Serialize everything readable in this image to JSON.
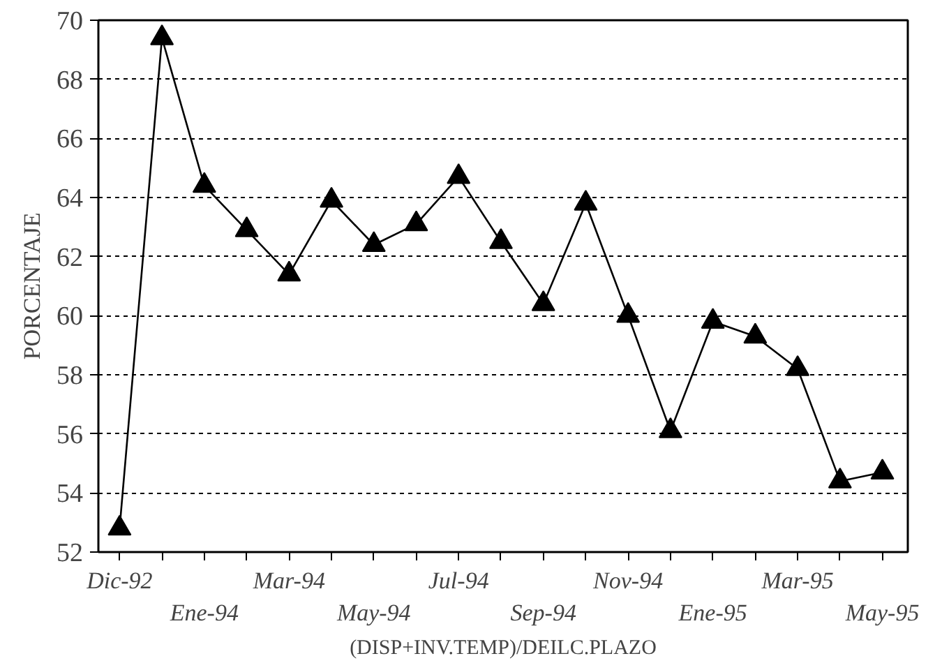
{
  "chart_data": {
    "type": "line",
    "xlabel": "(DISP+INV.TEMP)/DEILC.PLAZO",
    "ylabel": "PORCENTAJE",
    "categories": [
      "Dic-92",
      null,
      "Ene-94",
      null,
      "Mar-94",
      null,
      "May-94",
      null,
      "Jul-94",
      null,
      "Sep-94",
      null,
      "Nov-94",
      null,
      "Ene-95",
      null,
      "Mar-95",
      null,
      "May-95"
    ],
    "series": [
      {
        "color": "#000000",
        "values": [
          52.8,
          69.4,
          64.4,
          62.9,
          61.4,
          63.9,
          62.4,
          63.1,
          64.7,
          62.5,
          60.4,
          63.8,
          60.0,
          56.1,
          59.8,
          59.3,
          58.2,
          54.4,
          54.7
        ]
      }
    ],
    "ylim": [
      52,
      70
    ],
    "yticks": [
      52,
      54,
      56,
      58,
      60,
      62,
      64,
      66,
      68,
      70
    ],
    "grid": "y",
    "marker": "triangle",
    "line_style": "solid"
  }
}
